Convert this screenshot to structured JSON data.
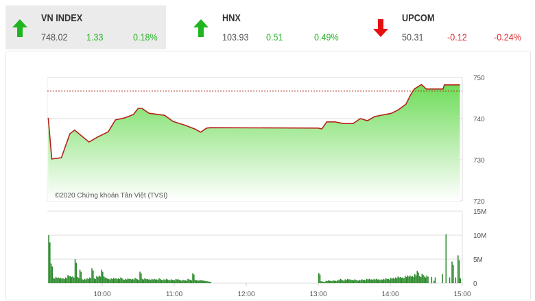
{
  "indices": [
    {
      "name": "VN INDEX",
      "value": "748.02",
      "change": "1.33",
      "percent": "0.18%",
      "direction": "up",
      "color": "#2db52d"
    },
    {
      "name": "HNX",
      "value": "103.93",
      "change": "0.51",
      "percent": "0.49%",
      "direction": "up",
      "color": "#2db52d"
    },
    {
      "name": "UPCOM",
      "value": "50.31",
      "change": "-0.12",
      "percent": "-0.24%",
      "direction": "down",
      "color": "#e0282a"
    }
  ],
  "colors": {
    "up": "#1fb51f",
    "down": "#e41010",
    "line": "#b5231b",
    "fill": "#7edf6a",
    "volume": "#2e8b2e",
    "reference": "#b5231b"
  },
  "chart_data": [
    {
      "type": "area",
      "copyright": "©2020 Chứng khoán Tân Việt (TVSI)",
      "reference_value": 746.69,
      "ylim": [
        720,
        750
      ],
      "yticks": [
        "750",
        "740",
        "730",
        "720"
      ],
      "xticks": [
        "10:00",
        "11:00",
        "12:00",
        "13:00",
        "14:00",
        "15:00"
      ],
      "grid": true,
      "points": [
        [
          "09:15",
          740.2
        ],
        [
          "09:18",
          730.2
        ],
        [
          "09:26",
          730.5
        ],
        [
          "09:33",
          736.3
        ],
        [
          "09:37",
          737.2
        ],
        [
          "09:42",
          736.0
        ],
        [
          "09:49",
          734.3
        ],
        [
          "09:56",
          735.5
        ],
        [
          "10:05",
          736.8
        ],
        [
          "10:11",
          739.7
        ],
        [
          "10:19",
          740.2
        ],
        [
          "10:26",
          741.0
        ],
        [
          "10:30",
          742.5
        ],
        [
          "10:33",
          742.5
        ],
        [
          "10:39",
          741.3
        ],
        [
          "10:52",
          740.8
        ],
        [
          "10:59",
          739.3
        ],
        [
          "11:08",
          738.5
        ],
        [
          "11:17",
          737.5
        ],
        [
          "11:22",
          736.7
        ],
        [
          "11:27",
          737.7
        ],
        [
          "11:30",
          737.8
        ],
        [
          "13:00",
          737.7
        ],
        [
          "13:03",
          737.5
        ],
        [
          "13:07",
          739.2
        ],
        [
          "13:14",
          739.2
        ],
        [
          "13:21",
          738.8
        ],
        [
          "13:29",
          738.8
        ],
        [
          "13:35",
          740.0
        ],
        [
          "13:41",
          739.5
        ],
        [
          "13:47",
          740.5
        ],
        [
          "14:01",
          741.3
        ],
        [
          "14:07",
          742.2
        ],
        [
          "14:13",
          743.5
        ],
        [
          "14:17",
          745.8
        ],
        [
          "14:20",
          747.2
        ],
        [
          "14:26",
          748.3
        ],
        [
          "14:30",
          747.2
        ],
        [
          "14:44",
          747.2
        ],
        [
          "14:45",
          748.2
        ],
        [
          "14:58",
          748.2
        ]
      ]
    },
    {
      "type": "bar",
      "ylim": [
        0,
        15
      ],
      "yticks": [
        "15M",
        "10M",
        "5M",
        "0"
      ],
      "unit": "M",
      "sessions": [
        {
          "start": "09:15",
          "step_min": 2,
          "values": [
            10.0,
            4.1,
            1.1,
            1.3,
            1.2,
            1.1,
            1.0,
            1.2,
            1.7,
            1.5,
            1.4,
            5.0,
            1.3,
            2.8,
            0.8,
            0.9,
            1.0,
            1.2,
            3.1,
            1.0,
            1.5,
            1.6,
            2.8,
            1.4,
            1.1,
            0.9,
            1.0,
            1.1,
            1.0,
            1.0,
            1.2,
            0.8,
            0.9,
            1.0,
            0.9,
            0.9,
            1.1,
            0.8,
            2.4,
            0.9,
            1.0,
            0.9,
            0.8,
            0.9,
            0.9,
            0.8,
            1.0,
            0.7,
            0.8,
            0.9,
            0.7,
            0.8,
            0.7,
            0.9,
            0.8,
            0.6,
            0.7,
            0.6,
            0.9,
            0.7,
            2.1,
            0.7,
            0.6,
            0.7,
            0.6,
            0.5,
            0.4,
            0.3
          ]
        },
        {
          "start": "13:00",
          "step_min": 2,
          "values": [
            2.1,
            0.4,
            0.3,
            0.5,
            0.6,
            0.5,
            0.6,
            0.5,
            0.7,
            0.9,
            0.6,
            0.8,
            0.9,
            0.8,
            0.7,
            0.8,
            0.6,
            0.7,
            0.8,
            0.7,
            0.9,
            0.9,
            0.8,
            0.9,
            0.9,
            0.8,
            0.8,
            0.9,
            1.0,
            0.9,
            1.1,
            1.1,
            1.2,
            1.4,
            1.3,
            1.2,
            1.5,
            1.6,
            1.6,
            1.5,
            1.9,
            2.6,
            1.5,
            2.0,
            1.4,
            1.6
          ]
        }
      ],
      "extra": [
        [
          "14:34",
          1.3
        ],
        [
          "14:36",
          0.5
        ],
        [
          "14:37",
          1.2
        ],
        [
          "14:43",
          1.9
        ],
        [
          "14:46",
          10.2
        ],
        [
          "14:49",
          1.2
        ],
        [
          "14:51",
          4.5
        ],
        [
          "14:52",
          3.8
        ],
        [
          "14:54",
          1.2
        ],
        [
          "14:56",
          5.8
        ],
        [
          "14:57",
          4.8
        ],
        [
          "14:58",
          1.0
        ]
      ]
    }
  ]
}
